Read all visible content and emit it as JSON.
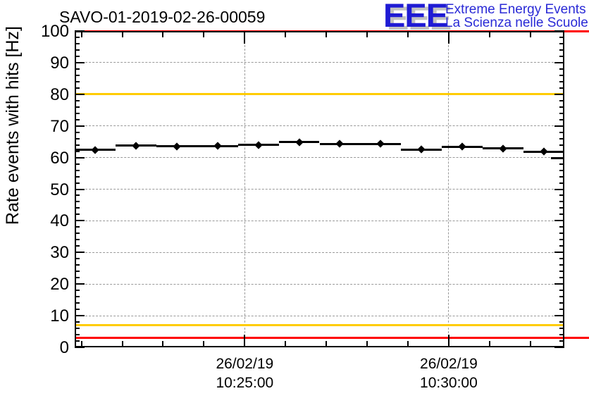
{
  "header": {
    "title": "SAVO-01-2019-02-26-00059"
  },
  "logo": {
    "letters": "EEE",
    "line1": "Extreme Energy Events",
    "line2": "La Scienza nelle Scuole",
    "letters_color": "#1f1bd4",
    "text_color": "#2a2ad6",
    "shadow_color": "#c2c2c2"
  },
  "chart_data": {
    "type": "scatter",
    "title": "SAVO-01-2019-02-26-00059",
    "xlabel": "",
    "ylabel": "Rate events with hits [Hz]",
    "ylim": [
      0,
      100
    ],
    "y_major_step": 10,
    "y_minor_step": 2,
    "grid": {
      "horizontal_every": 10,
      "vertical_at_major_ticks": true,
      "color": "#999999",
      "style": "dashed"
    },
    "x_axis": {
      "start": "10:20:50",
      "end": "10:32:50",
      "minor_tick_interval_s": 60,
      "major_ticks": [
        {
          "time": "10:25:00",
          "label_line1": "26/02/19",
          "label_line2": "10:25:00"
        },
        {
          "time": "10:30:00",
          "label_line1": "26/02/19",
          "label_line2": "10:30:00"
        }
      ]
    },
    "thresholds": [
      {
        "value": 100,
        "color": "#ff0000",
        "extend_to_canvas_right": true
      },
      {
        "value": 80,
        "color": "#ffcc00",
        "extend_to_canvas_right": false
      },
      {
        "value": 7,
        "color": "#ffcc00",
        "extend_to_canvas_right": false
      },
      {
        "value": 3,
        "color": "#ff0000",
        "extend_to_canvas_right": true
      }
    ],
    "series": [
      {
        "name": "rate-events-with-hits",
        "marker": "diamond",
        "color": "#000000",
        "x_error_s": 30,
        "points": [
          {
            "time": "10:21:20",
            "value": 62.4
          },
          {
            "time": "10:22:20",
            "value": 63.7
          },
          {
            "time": "10:23:20",
            "value": 63.5
          },
          {
            "time": "10:24:20",
            "value": 63.6
          },
          {
            "time": "10:25:20",
            "value": 64.0
          },
          {
            "time": "10:26:20",
            "value": 64.9
          },
          {
            "time": "10:27:20",
            "value": 64.3
          },
          {
            "time": "10:28:20",
            "value": 64.3
          },
          {
            "time": "10:29:20",
            "value": 62.5
          },
          {
            "time": "10:30:20",
            "value": 63.4
          },
          {
            "time": "10:31:20",
            "value": 62.9
          },
          {
            "time": "10:32:20",
            "value": 61.9
          }
        ],
        "partial_last_segment": {
          "from": "10:32:30",
          "to": "10:32:50",
          "value": 59.8
        }
      }
    ],
    "legend": null
  }
}
